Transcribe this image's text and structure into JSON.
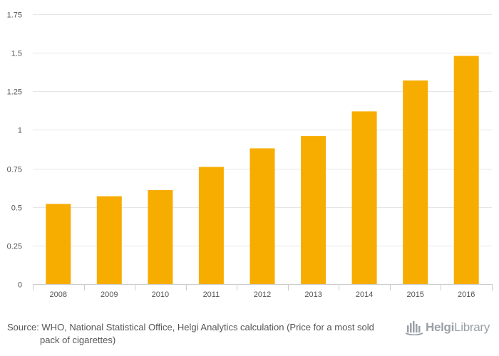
{
  "chart_data": {
    "type": "bar",
    "categories": [
      "2008",
      "2009",
      "2010",
      "2011",
      "2012",
      "2013",
      "2014",
      "2015",
      "2016"
    ],
    "values": [
      0.52,
      0.57,
      0.61,
      0.76,
      0.88,
      0.96,
      1.12,
      1.32,
      1.48
    ],
    "ylim": [
      0,
      1.75
    ],
    "yticks": [
      0,
      0.25,
      0.5,
      0.75,
      1,
      1.25,
      1.5,
      1.75
    ],
    "ytick_labels": [
      "0",
      "0.25",
      "0.5",
      "0.75",
      "1",
      "1.25",
      "1.5",
      "1.75"
    ],
    "grid": true,
    "bar_color": "#f7ac00",
    "title": "",
    "xlabel": "",
    "ylabel": ""
  },
  "footer": {
    "source": "Source: WHO, National Statistical Office, Helgi Analytics calculation (Price for a most sold pack of cigarettes)",
    "logo_bold": "Helgi",
    "logo_regular": "Library"
  }
}
